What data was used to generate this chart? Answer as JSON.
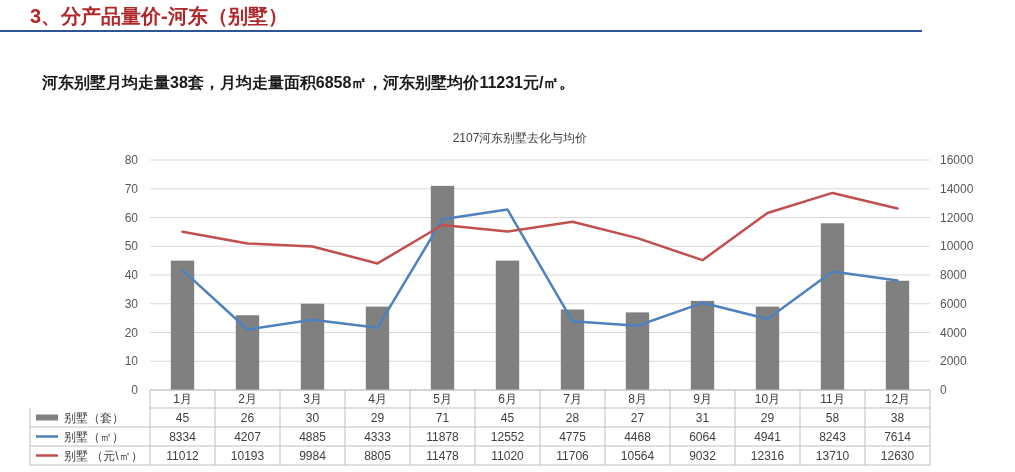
{
  "chart_data": {
    "type": "bar",
    "title": "2107河东别墅去化与均价",
    "annotations": [
      "3、分产品量价-河东（别墅）",
      "河东别墅月均走量38套，月均走量面积6858㎡，河东别墅均价11231元/㎡。"
    ],
    "categories": [
      "1月",
      "2月",
      "3月",
      "4月",
      "5月",
      "6月",
      "7月",
      "8月",
      "9月",
      "10月",
      "11月",
      "12月"
    ],
    "series": [
      {
        "name": "别墅（套）",
        "color": "#808080",
        "values": [
          45,
          26,
          30,
          29,
          71,
          45,
          28,
          27,
          31,
          29,
          58,
          38
        ]
      },
      {
        "name": "别墅（㎡）",
        "type": "line",
        "axis": "y2",
        "color": "#4f81bd",
        "values": [
          8334,
          4207,
          4885,
          4333,
          11878,
          12552,
          4775,
          4468,
          6064,
          4941,
          8243,
          7614
        ]
      },
      {
        "name": "别墅  （元\\㎡）",
        "type": "line",
        "axis": "y2",
        "color": "#c0504d",
        "values": [
          11012,
          10193,
          9984,
          8805,
          11478,
          11020,
          11706,
          10564,
          9032,
          12316,
          13710,
          12630
        ]
      }
    ],
    "ylim": [
      0,
      80
    ],
    "yticks": [
      0,
      10,
      20,
      30,
      40,
      50,
      60,
      70,
      80
    ],
    "y2lim": [
      0,
      16000
    ],
    "y2ticks": [
      0,
      2000,
      4000,
      6000,
      8000,
      10000,
      12000,
      14000,
      16000
    ],
    "grid": "y",
    "legend": "bottom",
    "data_labels": true,
    "marker": "none",
    "line_style": "solid"
  }
}
